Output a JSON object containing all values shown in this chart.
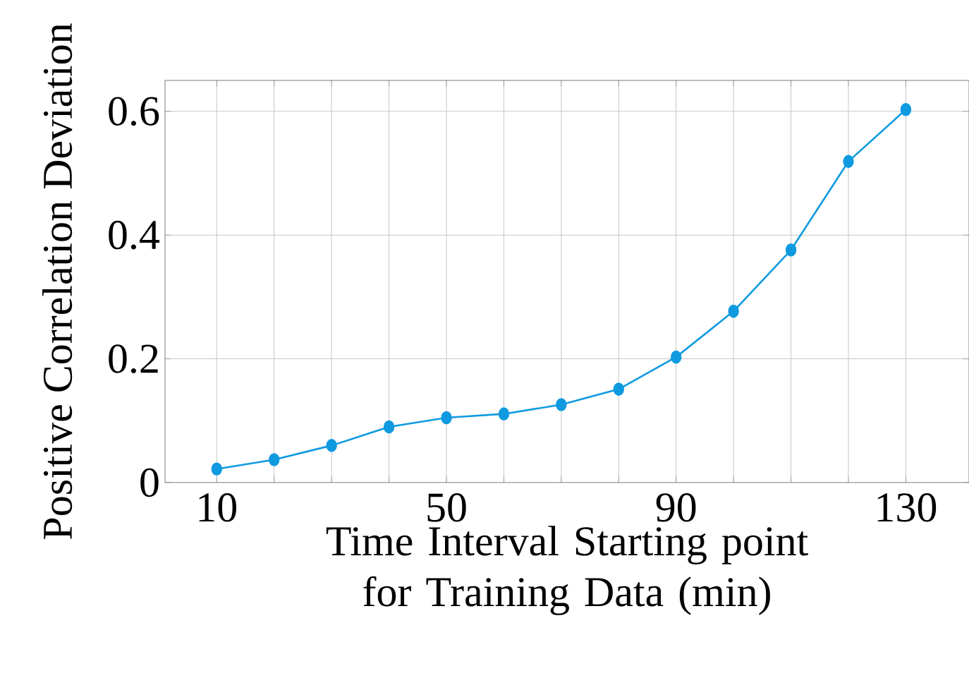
{
  "chart_data": {
    "type": "line",
    "xlabel": "Time Interval Starting point for Training Data (min)",
    "ylabel": "Positive Correlation Deviation",
    "x": [
      10,
      20,
      30,
      40,
      50,
      60,
      70,
      80,
      90,
      100,
      110,
      120,
      130
    ],
    "series": [
      {
        "color": "#0f9ae0",
        "values": [
          0.022,
          0.037,
          0.06,
          0.09,
          0.105,
          0.111,
          0.126,
          0.151,
          0.203,
          0.277,
          0.376,
          0.519,
          0.603
        ]
      }
    ],
    "xlim": [
      1,
      141
    ],
    "ylim": [
      0,
      0.65
    ],
    "xticks": [
      10,
      {
        "value": 20,
        "label": null
      },
      {
        "value": 30,
        "label": null
      },
      {
        "value": 40,
        "label": null
      },
      50,
      {
        "value": 60,
        "label": null
      },
      {
        "value": 70,
        "label": null
      },
      {
        "value": 80,
        "label": null
      },
      90,
      {
        "value": 100,
        "label": null
      },
      {
        "value": 110,
        "label": null
      },
      {
        "value": 120,
        "label": null
      },
      130
    ],
    "yticks": [
      0,
      0.2,
      0.4,
      0.6
    ],
    "grid": true,
    "marker": "circle",
    "line_style": "solid"
  }
}
